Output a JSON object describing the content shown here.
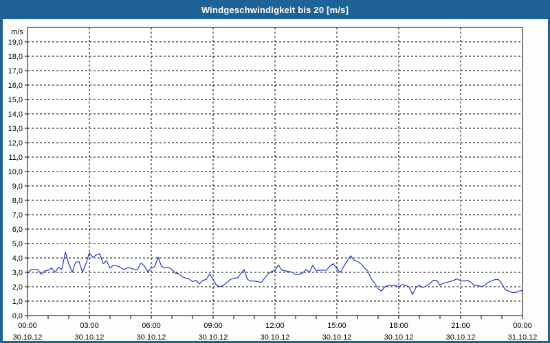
{
  "window": {
    "title": "Windgeschwindigkeit bis 20 [m/s]",
    "colors": {
      "titlebar": "#1f6296",
      "border": "#1f6296",
      "background": "#fdfdfb"
    }
  },
  "chart_data": {
    "type": "line",
    "title": "Windgeschwindigkeit bis 20 [m/s]",
    "unit_label": "m/s",
    "ylabel": "m/s",
    "ylim": [
      0,
      20
    ],
    "y_tick_step": 1,
    "y_tick_labels": [
      "0,0",
      "1,0",
      "2,0",
      "3,0",
      "4,0",
      "5,0",
      "6,0",
      "7,0",
      "8,0",
      "9,0",
      "10,0",
      "11,0",
      "12,0",
      "13,0",
      "14,0",
      "15,0",
      "16,0",
      "17,0",
      "18,0",
      "19,0"
    ],
    "x_range_minutes": [
      0,
      1440
    ],
    "x_minor_tick_minutes": 60,
    "x_ticks": [
      {
        "t_min": 0,
        "time": "00:00",
        "date": "30.10.12"
      },
      {
        "t_min": 180,
        "time": "03:00",
        "date": "30.10.12"
      },
      {
        "t_min": 360,
        "time": "06:00",
        "date": "30.10.12"
      },
      {
        "t_min": 540,
        "time": "09:00",
        "date": "30.10.12"
      },
      {
        "t_min": 720,
        "time": "12:00",
        "date": "30.10.12"
      },
      {
        "t_min": 900,
        "time": "15:00",
        "date": "30.10.12"
      },
      {
        "t_min": 1080,
        "time": "18:00",
        "date": "30.10.12"
      },
      {
        "t_min": 1260,
        "time": "21:00",
        "date": "30.10.12"
      },
      {
        "t_min": 1440,
        "time": "00:00",
        "date": "31.10.12"
      }
    ],
    "grid": "dashed-black",
    "legend": "none",
    "series": [
      {
        "name": "Windgeschwindigkeit",
        "color": "#2233cc",
        "points_t_min_value": [
          [
            0,
            2.9
          ],
          [
            10,
            3.2
          ],
          [
            20,
            3.2
          ],
          [
            30,
            3.2
          ],
          [
            40,
            2.85
          ],
          [
            50,
            3.1
          ],
          [
            60,
            3.15
          ],
          [
            70,
            3.3
          ],
          [
            80,
            3.0
          ],
          [
            90,
            3.35
          ],
          [
            100,
            3.2
          ],
          [
            110,
            4.4
          ],
          [
            120,
            3.6
          ],
          [
            130,
            3.0
          ],
          [
            140,
            3.7
          ],
          [
            150,
            3.75
          ],
          [
            160,
            3.0
          ],
          [
            170,
            3.6
          ],
          [
            180,
            4.35
          ],
          [
            190,
            4.05
          ],
          [
            200,
            4.2
          ],
          [
            210,
            4.3
          ],
          [
            220,
            3.6
          ],
          [
            230,
            3.8
          ],
          [
            240,
            3.3
          ],
          [
            250,
            3.5
          ],
          [
            260,
            3.45
          ],
          [
            270,
            3.35
          ],
          [
            280,
            3.2
          ],
          [
            290,
            3.3
          ],
          [
            300,
            3.3
          ],
          [
            310,
            3.2
          ],
          [
            320,
            3.2
          ],
          [
            330,
            3.65
          ],
          [
            340,
            3.45
          ],
          [
            350,
            3.05
          ],
          [
            360,
            3.3
          ],
          [
            370,
            3.4
          ],
          [
            380,
            4.05
          ],
          [
            390,
            3.4
          ],
          [
            400,
            3.3
          ],
          [
            410,
            3.35
          ],
          [
            420,
            3.2
          ],
          [
            430,
            2.95
          ],
          [
            440,
            2.9
          ],
          [
            450,
            2.7
          ],
          [
            460,
            2.6
          ],
          [
            470,
            2.55
          ],
          [
            480,
            2.35
          ],
          [
            490,
            2.45
          ],
          [
            500,
            2.2
          ],
          [
            510,
            2.45
          ],
          [
            520,
            2.5
          ],
          [
            530,
            2.9
          ],
          [
            540,
            2.5
          ],
          [
            550,
            2.1
          ],
          [
            560,
            2.0
          ],
          [
            570,
            2.1
          ],
          [
            580,
            2.3
          ],
          [
            590,
            2.5
          ],
          [
            600,
            2.6
          ],
          [
            610,
            2.6
          ],
          [
            620,
            2.9
          ],
          [
            630,
            3.2
          ],
          [
            640,
            2.5
          ],
          [
            650,
            2.4
          ],
          [
            660,
            2.4
          ],
          [
            670,
            2.35
          ],
          [
            680,
            2.3
          ],
          [
            690,
            2.6
          ],
          [
            700,
            2.9
          ],
          [
            710,
            3.05
          ],
          [
            720,
            3.15
          ],
          [
            730,
            3.5
          ],
          [
            740,
            3.15
          ],
          [
            750,
            3.1
          ],
          [
            760,
            3.05
          ],
          [
            770,
            3.0
          ],
          [
            780,
            2.85
          ],
          [
            790,
            2.85
          ],
          [
            800,
            2.95
          ],
          [
            810,
            3.2
          ],
          [
            820,
            3.0
          ],
          [
            830,
            3.5
          ],
          [
            840,
            3.1
          ],
          [
            850,
            3.15
          ],
          [
            860,
            3.15
          ],
          [
            870,
            3.15
          ],
          [
            880,
            3.45
          ],
          [
            890,
            3.6
          ],
          [
            900,
            3.25
          ],
          [
            910,
            3.0
          ],
          [
            920,
            3.4
          ],
          [
            930,
            3.8
          ],
          [
            940,
            4.15
          ],
          [
            950,
            3.85
          ],
          [
            960,
            3.75
          ],
          [
            970,
            3.6
          ],
          [
            980,
            3.3
          ],
          [
            990,
            3.1
          ],
          [
            1000,
            2.55
          ],
          [
            1010,
            2.25
          ],
          [
            1020,
            1.85
          ],
          [
            1030,
            1.7
          ],
          [
            1040,
            2.0
          ],
          [
            1050,
            2.1
          ],
          [
            1060,
            2.1
          ],
          [
            1070,
            2.1
          ],
          [
            1080,
            2.0
          ],
          [
            1090,
            2.15
          ],
          [
            1100,
            2.1
          ],
          [
            1110,
            2.0
          ],
          [
            1120,
            1.45
          ],
          [
            1130,
            1.95
          ],
          [
            1140,
            2.1
          ],
          [
            1150,
            1.95
          ],
          [
            1160,
            2.05
          ],
          [
            1170,
            2.2
          ],
          [
            1180,
            2.45
          ],
          [
            1190,
            2.45
          ],
          [
            1200,
            2.1
          ],
          [
            1210,
            2.25
          ],
          [
            1220,
            2.3
          ],
          [
            1230,
            2.35
          ],
          [
            1240,
            2.45
          ],
          [
            1250,
            2.55
          ],
          [
            1260,
            2.4
          ],
          [
            1270,
            2.4
          ],
          [
            1280,
            2.45
          ],
          [
            1290,
            2.3
          ],
          [
            1300,
            2.1
          ],
          [
            1310,
            2.1
          ],
          [
            1320,
            2.0
          ],
          [
            1330,
            2.1
          ],
          [
            1340,
            2.3
          ],
          [
            1350,
            2.4
          ],
          [
            1360,
            2.5
          ],
          [
            1370,
            2.5
          ],
          [
            1380,
            2.2
          ],
          [
            1390,
            1.8
          ],
          [
            1400,
            1.7
          ],
          [
            1410,
            1.6
          ],
          [
            1420,
            1.6
          ],
          [
            1430,
            1.7
          ],
          [
            1440,
            1.75
          ]
        ]
      }
    ]
  }
}
